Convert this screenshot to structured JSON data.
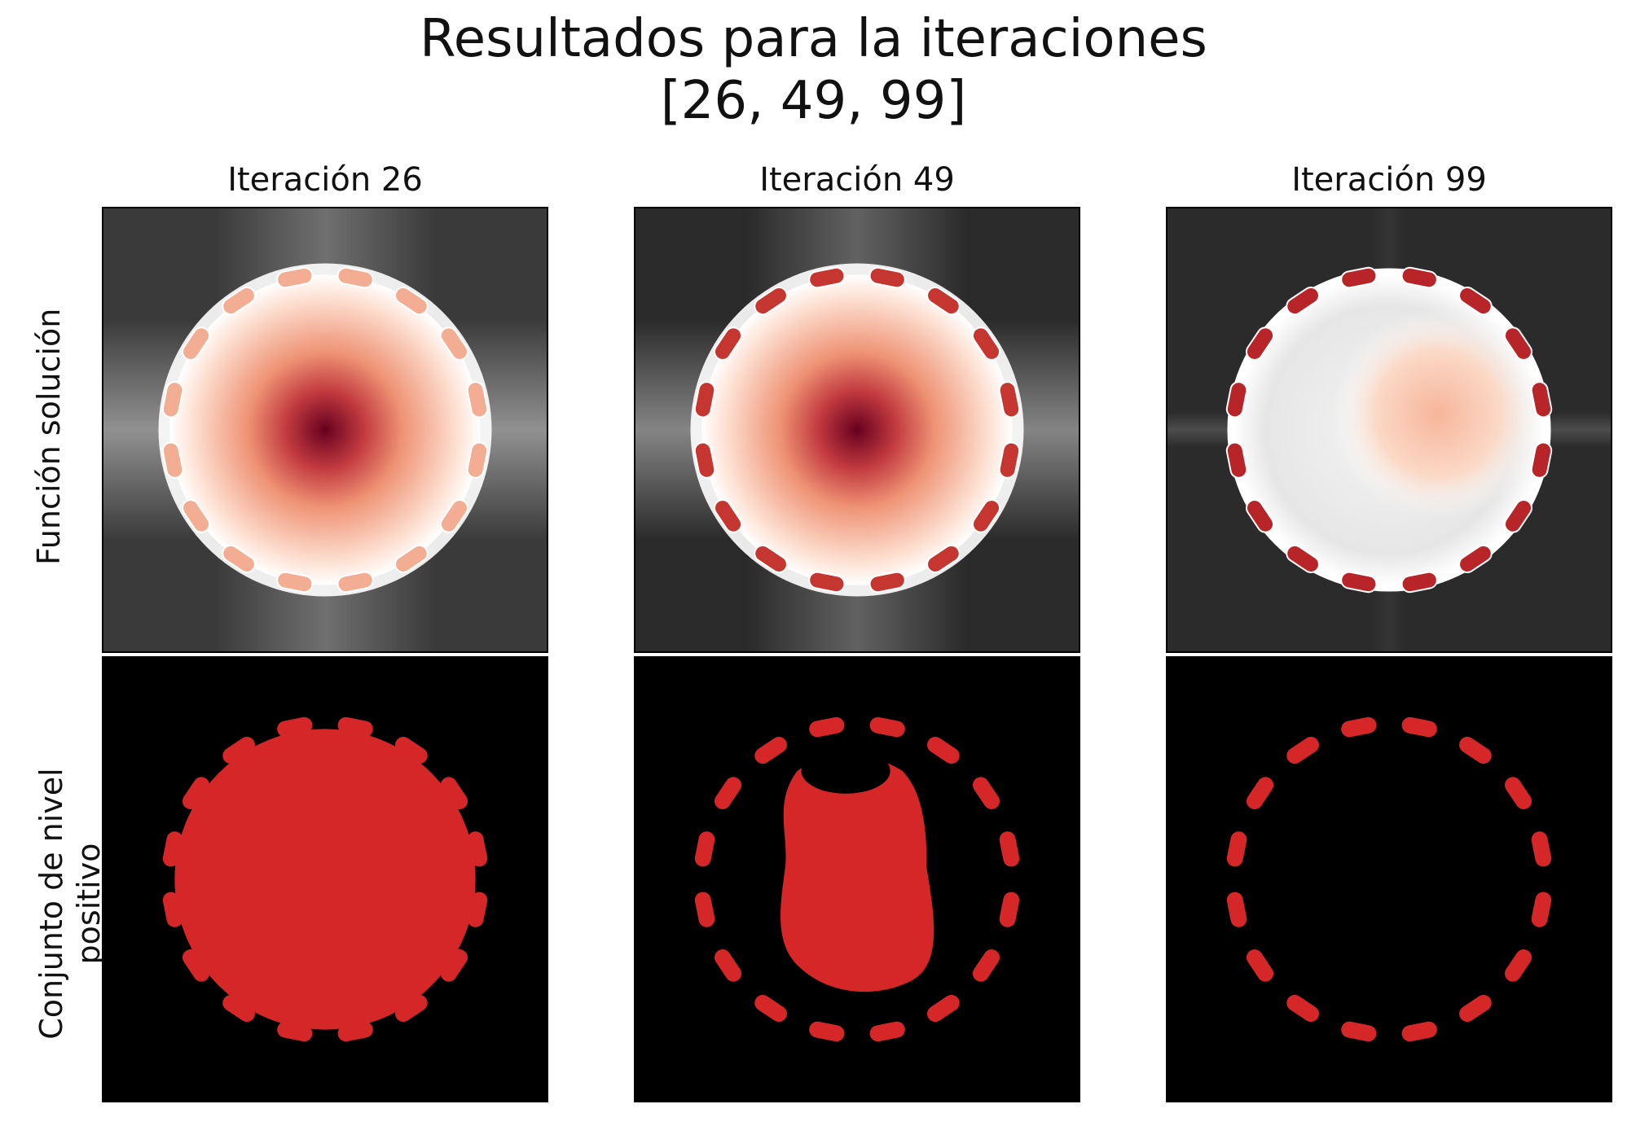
{
  "figure": {
    "title_line_1": "Resultados para la iteraciones",
    "title_line_2": "[26, 49, 99]",
    "row_labels": [
      "Función solución",
      "Conjunto de nivel\npositivo"
    ]
  },
  "chart_data": [
    {
      "type": "heatmap",
      "title": "Iteración 26",
      "row": "Función solución",
      "iteration": 26,
      "colormap": "diverging RdGy (red positive, gray negative)",
      "ticks": "none",
      "ring_segments": 16,
      "segment_color": "#f2ad93",
      "center_color": "#67001f",
      "interior_profile": [
        {
          "r": 0.0,
          "color": "#67001f"
        },
        {
          "r": 0.25,
          "color": "#c23a3f"
        },
        {
          "r": 0.5,
          "color": "#ef9375"
        },
        {
          "r": 0.85,
          "color": "#fde0d2"
        },
        {
          "r": 1.0,
          "color": "#ffffff"
        }
      ],
      "background": "gray"
    },
    {
      "type": "heatmap",
      "title": "Iteración 49",
      "row": "Función solución",
      "iteration": 49,
      "colormap": "diverging RdGy (red positive, gray negative)",
      "ticks": "none",
      "ring_segments": 16,
      "segment_color": "#c4362f",
      "center_color": "#67001f",
      "interior_profile": [
        {
          "r": 0.0,
          "color": "#67001f"
        },
        {
          "r": 0.25,
          "color": "#c23a3f"
        },
        {
          "r": 0.5,
          "color": "#ef9375"
        },
        {
          "r": 0.85,
          "color": "#fde0d2"
        },
        {
          "r": 1.0,
          "color": "#ffffff"
        }
      ],
      "background": "dark gray"
    },
    {
      "type": "heatmap",
      "title": "Iteración 99",
      "row": "Función solución",
      "iteration": 99,
      "colormap": "diverging RdGy (red positive, gray negative)",
      "ticks": "none",
      "ring_segments": 16,
      "segment_color": "#b82529",
      "interior": "near white with light red patch right of center",
      "background": "dark gray"
    },
    {
      "type": "heatmap",
      "title": "",
      "row": "Conjunto de nivel positivo",
      "iteration": 26,
      "binary": true,
      "fill_color": "#d62728",
      "background_color": "#000000",
      "region": "filled disk with scalloped edge"
    },
    {
      "type": "heatmap",
      "title": "",
      "row": "Conjunto de nivel positivo",
      "iteration": 49,
      "binary": true,
      "fill_color": "#d62728",
      "background_color": "#000000",
      "region": "dashed ring with irregular central blob"
    },
    {
      "type": "heatmap",
      "title": "",
      "row": "Conjunto de nivel positivo",
      "iteration": 99,
      "binary": true,
      "fill_color": "#d62728",
      "background_color": "#000000",
      "region": "dashed ring of 16 segments, empty interior"
    }
  ]
}
